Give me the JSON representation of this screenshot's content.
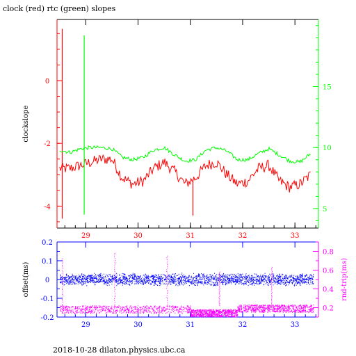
{
  "title": "clock (red) rtc (green) slopes",
  "footer": "2018-10-28  dilaton.physics.ubc.ca",
  "colors": {
    "red": "#ff0000",
    "green": "#00ff00",
    "blue": "#0000ff",
    "magenta": "#ff00ff",
    "black": "#000000"
  },
  "chart_data": [
    {
      "type": "line",
      "title": "clock (red) rtc (green) slopes",
      "xlabel": "",
      "ylabel": "clockslope",
      "y2label": "",
      "xlim": [
        28.45,
        33.45
      ],
      "ylim": [
        -4.7,
        1.95
      ],
      "y2lim": [
        3.4,
        20.5
      ],
      "xticks": [
        29,
        30,
        31,
        32,
        33
      ],
      "xtick_labels": [
        "29",
        "30",
        "31",
        "32",
        "33"
      ],
      "yticks": [
        0,
        -2,
        -4
      ],
      "ytick_labels": [
        "0",
        "-2",
        "-4"
      ],
      "y2ticks": [
        5,
        10,
        15
      ],
      "y2tick_labels": [
        "5",
        "10",
        "15"
      ],
      "grid": false,
      "series": [
        {
          "name": "clock",
          "color": "#ff0000",
          "axis": "left",
          "x": [
            28.5,
            28.7,
            28.9,
            29.1,
            29.3,
            29.5,
            29.7,
            29.9,
            30.1,
            30.3,
            30.5,
            30.7,
            30.9,
            31.1,
            31.3,
            31.5,
            31.7,
            31.9,
            32.1,
            32.3,
            32.5,
            32.7,
            32.9,
            33.1,
            33.3
          ],
          "y": [
            -2.8,
            -2.8,
            -2.7,
            -2.6,
            -2.5,
            -2.5,
            -3.1,
            -3.3,
            -3.2,
            -2.8,
            -2.6,
            -2.9,
            -3.3,
            -3.1,
            -2.7,
            -2.6,
            -3.0,
            -3.3,
            -3.2,
            -2.8,
            -2.7,
            -3.2,
            -3.4,
            -3.3,
            -3.0
          ],
          "spikes": [
            {
              "x": 28.55,
              "y": 1.65
            },
            {
              "x": 28.55,
              "y": -4.4
            },
            {
              "x": 31.05,
              "y": -4.3
            }
          ]
        },
        {
          "name": "rtc",
          "color": "#00ff00",
          "axis": "right",
          "x": [
            28.5,
            28.7,
            28.9,
            29.1,
            29.3,
            29.5,
            29.7,
            29.9,
            30.1,
            30.3,
            30.5,
            30.7,
            30.9,
            31.1,
            31.3,
            31.5,
            31.7,
            31.9,
            32.1,
            32.3,
            32.5,
            32.7,
            32.9,
            33.1,
            33.3
          ],
          "y": [
            9.8,
            9.6,
            9.9,
            10.0,
            10.0,
            9.9,
            9.2,
            9.0,
            9.2,
            9.8,
            10.0,
            9.4,
            8.9,
            9.0,
            9.8,
            10.0,
            9.7,
            9.0,
            9.0,
            9.5,
            9.9,
            9.4,
            8.9,
            8.8,
            9.5
          ],
          "spikes": [
            {
              "x": 28.97,
              "y": 19.2
            },
            {
              "x": 28.97,
              "y": 4.5
            }
          ]
        }
      ]
    },
    {
      "type": "scatter",
      "title": "",
      "xlabel": "",
      "ylabel": "offset(ms)",
      "y2label": "rnd-trip(ms)",
      "xlim": [
        28.45,
        33.45
      ],
      "ylim": [
        -0.2,
        0.2
      ],
      "y2lim": [
        0.1,
        0.9
      ],
      "xticks": [
        29,
        30,
        31,
        32,
        33
      ],
      "xtick_labels": [
        "29",
        "30",
        "31",
        "32",
        "33"
      ],
      "yticks": [
        0.2,
        0.1,
        0,
        -0.1,
        -0.2
      ],
      "ytick_labels": [
        "0.2",
        "0.1",
        "0",
        "-0.1",
        "-0.2"
      ],
      "y2ticks": [
        0.2,
        0.4,
        0.6,
        0.8
      ],
      "y2tick_labels": [
        "0.2",
        "0.4",
        "0.6",
        "0.8"
      ],
      "grid": false,
      "series": [
        {
          "name": "offset",
          "color": "#0000ff",
          "axis": "left",
          "x_range": [
            28.5,
            33.35
          ],
          "center": 0.0,
          "spread": 0.035
        },
        {
          "name": "rnd-trip",
          "color": "#ff00ff",
          "axis": "right",
          "x_range": [
            28.5,
            33.35
          ],
          "segments": [
            {
              "x0": 28.5,
              "x1": 31.0,
              "level": 0.18
            },
            {
              "x0": 31.0,
              "x1": 31.9,
              "level": 0.14
            },
            {
              "x0": 31.9,
              "x1": 33.35,
              "level": 0.19
            }
          ],
          "spikes": [
            {
              "x": 28.55,
              "y": 0.72
            },
            {
              "x": 29.55,
              "y": 0.78
            },
            {
              "x": 30.55,
              "y": 0.75
            },
            {
              "x": 31.55,
              "y": 0.58
            },
            {
              "x": 32.55,
              "y": 0.63
            }
          ]
        }
      ]
    }
  ]
}
